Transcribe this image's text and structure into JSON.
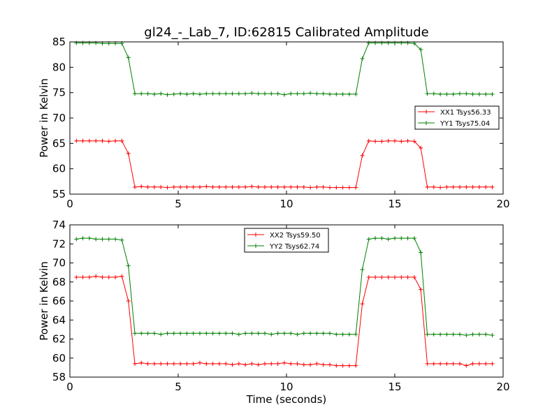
{
  "chart_data": [
    {
      "type": "line",
      "title": "gl24_-_Lab_7, ID:62815 Calibrated Amplitude",
      "xlabel": "",
      "ylabel": "Power in Kelvin",
      "xlim": [
        0,
        20
      ],
      "ylim": [
        55,
        85
      ],
      "xticks": [
        "0",
        "5",
        "10",
        "15",
        "20"
      ],
      "yticks": [
        "55",
        "60",
        "65",
        "70",
        "75",
        "80",
        "85"
      ],
      "grid": false,
      "legend_position": "right",
      "x": [
        0.3,
        0.6,
        0.9,
        1.2,
        1.5,
        1.8,
        2.1,
        2.4,
        2.7,
        3.0,
        3.3,
        3.6,
        3.9,
        4.2,
        4.5,
        4.8,
        5.1,
        5.4,
        5.7,
        6.0,
        6.3,
        6.6,
        6.9,
        7.2,
        7.5,
        7.8,
        8.1,
        8.4,
        8.7,
        9.0,
        9.3,
        9.6,
        9.9,
        10.2,
        10.5,
        10.8,
        11.1,
        11.4,
        11.7,
        12.0,
        12.3,
        12.6,
        12.9,
        13.2,
        13.5,
        13.8,
        14.1,
        14.4,
        14.7,
        15.0,
        15.3,
        15.6,
        15.9,
        16.2,
        16.5,
        16.8,
        17.1,
        17.4,
        17.7,
        18.0,
        18.3,
        18.6,
        18.9,
        19.2,
        19.5
      ],
      "series": [
        {
          "name": "XX1 Tsys56.33",
          "color": "#ff0000",
          "values": [
            65.5,
            65.5,
            65.5,
            65.5,
            65.5,
            65.4,
            65.5,
            65.5,
            63.0,
            56.4,
            56.5,
            56.4,
            56.4,
            56.4,
            56.3,
            56.4,
            56.4,
            56.4,
            56.4,
            56.4,
            56.5,
            56.4,
            56.4,
            56.4,
            56.4,
            56.4,
            56.4,
            56.5,
            56.4,
            56.4,
            56.4,
            56.4,
            56.4,
            56.4,
            56.4,
            56.4,
            56.3,
            56.4,
            56.4,
            56.3,
            56.3,
            56.3,
            56.3,
            56.3,
            62.6,
            65.5,
            65.4,
            65.4,
            65.5,
            65.5,
            65.4,
            65.5,
            65.4,
            64.1,
            56.4,
            56.4,
            56.3,
            56.4,
            56.4,
            56.4,
            56.4,
            56.4,
            56.4,
            56.4,
            56.4
          ]
        },
        {
          "name": "YY1 Tsys75.04",
          "color": "#008000",
          "values": [
            84.8,
            84.8,
            84.8,
            84.8,
            84.7,
            84.7,
            84.7,
            84.7,
            81.9,
            74.8,
            74.8,
            74.8,
            74.7,
            74.8,
            74.6,
            74.7,
            74.8,
            74.7,
            74.8,
            74.7,
            74.8,
            74.8,
            74.8,
            74.8,
            74.8,
            74.8,
            74.8,
            74.9,
            74.8,
            74.8,
            74.8,
            74.8,
            74.6,
            74.8,
            74.8,
            74.8,
            74.9,
            74.8,
            74.8,
            74.7,
            74.7,
            74.7,
            74.7,
            74.7,
            81.7,
            84.8,
            84.8,
            84.8,
            84.8,
            84.8,
            84.8,
            84.8,
            84.7,
            83.5,
            74.8,
            74.8,
            74.7,
            74.7,
            74.7,
            74.8,
            74.8,
            74.7,
            74.7,
            74.7,
            74.7
          ]
        }
      ]
    },
    {
      "type": "line",
      "title": "",
      "xlabel": "Time (seconds)",
      "ylabel": "Power in Kelvin",
      "xlim": [
        0,
        20
      ],
      "ylim": [
        58,
        74
      ],
      "xticks": [
        "0",
        "5",
        "10",
        "15",
        "20"
      ],
      "yticks": [
        "58",
        "60",
        "62",
        "64",
        "66",
        "68",
        "70",
        "72",
        "74"
      ],
      "grid": false,
      "legend_position": "top-center",
      "x": [
        0.3,
        0.6,
        0.9,
        1.2,
        1.5,
        1.8,
        2.1,
        2.4,
        2.7,
        3.0,
        3.3,
        3.6,
        3.9,
        4.2,
        4.5,
        4.8,
        5.1,
        5.4,
        5.7,
        6.0,
        6.3,
        6.6,
        6.9,
        7.2,
        7.5,
        7.8,
        8.1,
        8.4,
        8.7,
        9.0,
        9.3,
        9.6,
        9.9,
        10.2,
        10.5,
        10.8,
        11.1,
        11.4,
        11.7,
        12.0,
        12.3,
        12.6,
        12.9,
        13.2,
        13.5,
        13.8,
        14.1,
        14.4,
        14.7,
        15.0,
        15.3,
        15.6,
        15.9,
        16.2,
        16.5,
        16.8,
        17.1,
        17.4,
        17.7,
        18.0,
        18.3,
        18.6,
        18.9,
        19.2,
        19.5
      ],
      "series": [
        {
          "name": "XX2 Tsys59.50",
          "color": "#ff0000",
          "values": [
            68.5,
            68.5,
            68.5,
            68.6,
            68.5,
            68.5,
            68.5,
            68.6,
            66.0,
            59.4,
            59.5,
            59.4,
            59.4,
            59.4,
            59.4,
            59.4,
            59.4,
            59.4,
            59.4,
            59.5,
            59.4,
            59.4,
            59.4,
            59.4,
            59.3,
            59.4,
            59.3,
            59.4,
            59.3,
            59.4,
            59.4,
            59.4,
            59.5,
            59.4,
            59.4,
            59.3,
            59.3,
            59.4,
            59.3,
            59.3,
            59.2,
            59.2,
            59.2,
            59.2,
            65.7,
            68.5,
            68.5,
            68.5,
            68.5,
            68.5,
            68.5,
            68.5,
            68.5,
            67.2,
            59.4,
            59.4,
            59.4,
            59.4,
            59.4,
            59.4,
            59.2,
            59.4,
            59.4,
            59.4,
            59.4
          ]
        },
        {
          "name": "YY2 Tsys62.74",
          "color": "#008000",
          "values": [
            72.5,
            72.6,
            72.6,
            72.5,
            72.5,
            72.5,
            72.5,
            72.4,
            69.7,
            62.6,
            62.6,
            62.6,
            62.6,
            62.5,
            62.6,
            62.6,
            62.6,
            62.6,
            62.6,
            62.6,
            62.6,
            62.6,
            62.6,
            62.6,
            62.6,
            62.5,
            62.6,
            62.6,
            62.6,
            62.6,
            62.5,
            62.6,
            62.6,
            62.6,
            62.5,
            62.6,
            62.6,
            62.6,
            62.6,
            62.6,
            62.5,
            62.5,
            62.5,
            62.5,
            69.3,
            72.5,
            72.6,
            72.6,
            72.5,
            72.6,
            72.6,
            72.6,
            72.6,
            71.1,
            62.5,
            62.5,
            62.5,
            62.5,
            62.5,
            62.5,
            62.4,
            62.5,
            62.5,
            62.5,
            62.4
          ]
        }
      ]
    }
  ]
}
